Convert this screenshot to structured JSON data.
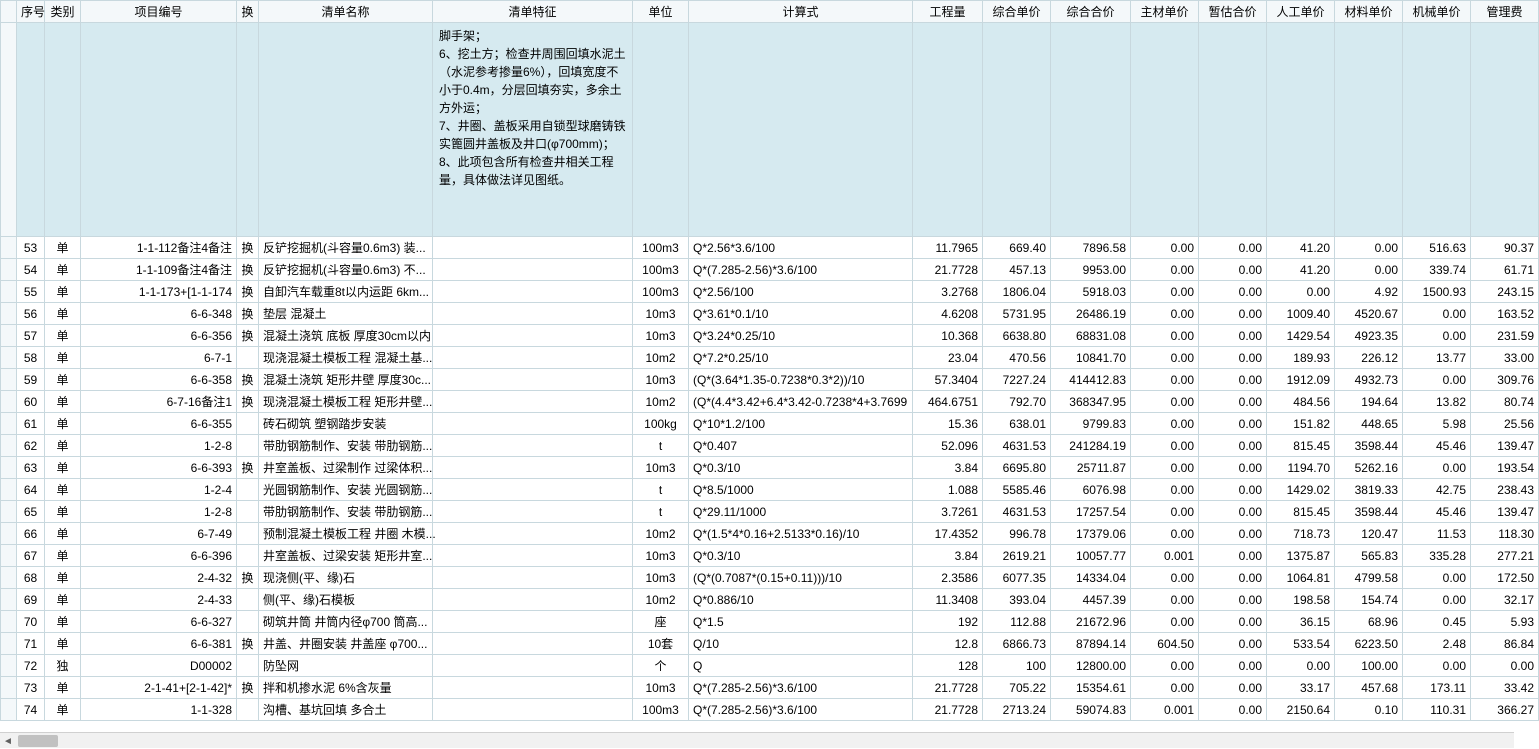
{
  "headers": {
    "seq": "序号",
    "cat": "类别",
    "code": "项目编号",
    "swap": "换",
    "name": "清单名称",
    "feat": "清单特征",
    "unit": "单位",
    "formula": "计算式",
    "qty": "工程量",
    "uprice": "综合单价",
    "tprice": "综合合价",
    "mat": "主材单价",
    "prov": "暂估合价",
    "labor": "人工单价",
    "matu": "材料单价",
    "mach": "机械单价",
    "mgmt": "管理费"
  },
  "special_feat": "脚手架；\n6、挖土方；检查井周围回填水泥土（水泥参考掺量6%），回填宽度不小于0.4m，分层回填夯实，多余土方外运；\n7、井圈、盖板采用自锁型球磨铸铁实篦圆井盖板及井口(φ700mm)；\n8、此项包含所有检查井相关工程量，具体做法详见图纸。",
  "rows": [
    {
      "seq": "53",
      "cat": "单",
      "code": "1-1-112备注4备注",
      "swap": "换",
      "name": "反铲挖掘机(斗容量0.6m3) 装...",
      "feat": "",
      "unit": "100m3",
      "formula": "Q*2.56*3.6/100",
      "qty": "11.7965",
      "uprice": "669.40",
      "tprice": "7896.58",
      "mat": "0.00",
      "prov": "0.00",
      "labor": "41.20",
      "matu": "0.00",
      "mach": "516.63",
      "mgmt": "90.37"
    },
    {
      "seq": "54",
      "cat": "单",
      "code": "1-1-109备注4备注",
      "swap": "换",
      "name": "反铲挖掘机(斗容量0.6m3) 不...",
      "feat": "",
      "unit": "100m3",
      "formula": "Q*(7.285-2.56)*3.6/100",
      "qty": "21.7728",
      "uprice": "457.13",
      "tprice": "9953.00",
      "mat": "0.00",
      "prov": "0.00",
      "labor": "41.20",
      "matu": "0.00",
      "mach": "339.74",
      "mgmt": "61.71"
    },
    {
      "seq": "55",
      "cat": "单",
      "code": "1-1-173+[1-1-174",
      "swap": "换",
      "name": "自卸汽车载重8t以内运距 6km...",
      "feat": "",
      "unit": "100m3",
      "formula": "Q*2.56/100",
      "qty": "3.2768",
      "uprice": "1806.04",
      "tprice": "5918.03",
      "mat": "0.00",
      "prov": "0.00",
      "labor": "0.00",
      "matu": "4.92",
      "mach": "1500.93",
      "mgmt": "243.15"
    },
    {
      "seq": "56",
      "cat": "单",
      "code": "6-6-348",
      "swap": "换",
      "name": "垫层 混凝土",
      "feat": "",
      "unit": "10m3",
      "formula": "Q*3.61*0.1/10",
      "qty": "4.6208",
      "uprice": "5731.95",
      "tprice": "26486.19",
      "mat": "0.00",
      "prov": "0.00",
      "labor": "1009.40",
      "matu": "4520.67",
      "mach": "0.00",
      "mgmt": "163.52"
    },
    {
      "seq": "57",
      "cat": "单",
      "code": "6-6-356",
      "swap": "换",
      "name": "混凝土浇筑 底板 厚度30cm以内",
      "feat": "",
      "unit": "10m3",
      "formula": "Q*3.24*0.25/10",
      "qty": "10.368",
      "uprice": "6638.80",
      "tprice": "68831.08",
      "mat": "0.00",
      "prov": "0.00",
      "labor": "1429.54",
      "matu": "4923.35",
      "mach": "0.00",
      "mgmt": "231.59"
    },
    {
      "seq": "58",
      "cat": "单",
      "code": "6-7-1",
      "swap": "",
      "name": "现浇混凝土模板工程 混凝土基...",
      "feat": "",
      "unit": "10m2",
      "formula": "Q*7.2*0.25/10",
      "qty": "23.04",
      "uprice": "470.56",
      "tprice": "10841.70",
      "mat": "0.00",
      "prov": "0.00",
      "labor": "189.93",
      "matu": "226.12",
      "mach": "13.77",
      "mgmt": "33.00"
    },
    {
      "seq": "59",
      "cat": "单",
      "code": "6-6-358",
      "swap": "换",
      "name": "混凝土浇筑 矩形井壁 厚度30c...",
      "feat": "",
      "unit": "10m3",
      "formula": "(Q*(3.64*1.35-0.7238*0.3*2))/10",
      "qty": "57.3404",
      "uprice": "7227.24",
      "tprice": "414412.83",
      "mat": "0.00",
      "prov": "0.00",
      "labor": "1912.09",
      "matu": "4932.73",
      "mach": "0.00",
      "mgmt": "309.76"
    },
    {
      "seq": "60",
      "cat": "单",
      "code": "6-7-16备注1",
      "swap": "换",
      "name": "现浇混凝土模板工程 矩形井壁...",
      "feat": "",
      "unit": "10m2",
      "formula": "(Q*(4.4*3.42+6.4*3.42-0.7238*4+3.7699",
      "qty": "464.6751",
      "uprice": "792.70",
      "tprice": "368347.95",
      "mat": "0.00",
      "prov": "0.00",
      "labor": "484.56",
      "matu": "194.64",
      "mach": "13.82",
      "mgmt": "80.74"
    },
    {
      "seq": "61",
      "cat": "单",
      "code": "6-6-355",
      "swap": "",
      "name": "砖石砌筑 塑钢踏步安装",
      "feat": "",
      "unit": "100kg",
      "formula": "Q*10*1.2/100",
      "qty": "15.36",
      "uprice": "638.01",
      "tprice": "9799.83",
      "mat": "0.00",
      "prov": "0.00",
      "labor": "151.82",
      "matu": "448.65",
      "mach": "5.98",
      "mgmt": "25.56"
    },
    {
      "seq": "62",
      "cat": "单",
      "code": "1-2-8",
      "swap": "",
      "name": "带肋钢筋制作、安装 带肋钢筋...",
      "feat": "",
      "unit": "t",
      "formula": "Q*0.407",
      "qty": "52.096",
      "uprice": "4631.53",
      "tprice": "241284.19",
      "mat": "0.00",
      "prov": "0.00",
      "labor": "815.45",
      "matu": "3598.44",
      "mach": "45.46",
      "mgmt": "139.47"
    },
    {
      "seq": "63",
      "cat": "单",
      "code": "6-6-393",
      "swap": "换",
      "name": "井室盖板、过梁制作 过梁体积...",
      "feat": "",
      "unit": "10m3",
      "formula": "Q*0.3/10",
      "qty": "3.84",
      "uprice": "6695.80",
      "tprice": "25711.87",
      "mat": "0.00",
      "prov": "0.00",
      "labor": "1194.70",
      "matu": "5262.16",
      "mach": "0.00",
      "mgmt": "193.54"
    },
    {
      "seq": "64",
      "cat": "单",
      "code": "1-2-4",
      "swap": "",
      "name": "光圆钢筋制作、安装 光圆钢筋...",
      "feat": "",
      "unit": "t",
      "formula": "Q*8.5/1000",
      "qty": "1.088",
      "uprice": "5585.46",
      "tprice": "6076.98",
      "mat": "0.00",
      "prov": "0.00",
      "labor": "1429.02",
      "matu": "3819.33",
      "mach": "42.75",
      "mgmt": "238.43"
    },
    {
      "seq": "65",
      "cat": "单",
      "code": "1-2-8",
      "swap": "",
      "name": "带肋钢筋制作、安装 带肋钢筋...",
      "feat": "",
      "unit": "t",
      "formula": "Q*29.11/1000",
      "qty": "3.7261",
      "uprice": "4631.53",
      "tprice": "17257.54",
      "mat": "0.00",
      "prov": "0.00",
      "labor": "815.45",
      "matu": "3598.44",
      "mach": "45.46",
      "mgmt": "139.47"
    },
    {
      "seq": "66",
      "cat": "单",
      "code": "6-7-49",
      "swap": "",
      "name": "预制混凝土模板工程 井圈 木模...",
      "feat": "",
      "unit": "10m2",
      "formula": "Q*(1.5*4*0.16+2.5133*0.16)/10",
      "qty": "17.4352",
      "uprice": "996.78",
      "tprice": "17379.06",
      "mat": "0.00",
      "prov": "0.00",
      "labor": "718.73",
      "matu": "120.47",
      "mach": "11.53",
      "mgmt": "118.30"
    },
    {
      "seq": "67",
      "cat": "单",
      "code": "6-6-396",
      "swap": "",
      "name": "井室盖板、过梁安装 矩形井室...",
      "feat": "",
      "unit": "10m3",
      "formula": "Q*0.3/10",
      "qty": "3.84",
      "uprice": "2619.21",
      "tprice": "10057.77",
      "mat": "0.001",
      "prov": "0.00",
      "labor": "1375.87",
      "matu": "565.83",
      "mach": "335.28",
      "mgmt": "277.21"
    },
    {
      "seq": "68",
      "cat": "单",
      "code": "2-4-32",
      "swap": "换",
      "name": "现浇侧(平、缘)石",
      "feat": "",
      "unit": "10m3",
      "formula": "(Q*(0.7087*(0.15+0.11)))/10",
      "qty": "2.3586",
      "uprice": "6077.35",
      "tprice": "14334.04",
      "mat": "0.00",
      "prov": "0.00",
      "labor": "1064.81",
      "matu": "4799.58",
      "mach": "0.00",
      "mgmt": "172.50"
    },
    {
      "seq": "69",
      "cat": "单",
      "code": "2-4-33",
      "swap": "",
      "name": "侧(平、缘)石模板",
      "feat": "",
      "unit": "10m2",
      "formula": "Q*0.886/10",
      "qty": "11.3408",
      "uprice": "393.04",
      "tprice": "4457.39",
      "mat": "0.00",
      "prov": "0.00",
      "labor": "198.58",
      "matu": "154.74",
      "mach": "0.00",
      "mgmt": "32.17"
    },
    {
      "seq": "70",
      "cat": "单",
      "code": "6-6-327",
      "swap": "",
      "name": "砌筑井筒 井筒内径φ700 筒高...",
      "feat": "",
      "unit": "座",
      "formula": "Q*1.5",
      "qty": "192",
      "uprice": "112.88",
      "tprice": "21672.96",
      "mat": "0.00",
      "prov": "0.00",
      "labor": "36.15",
      "matu": "68.96",
      "mach": "0.45",
      "mgmt": "5.93"
    },
    {
      "seq": "71",
      "cat": "单",
      "code": "6-6-381",
      "swap": "换",
      "name": "井盖、井圈安装 井盖座 φ700...",
      "feat": "",
      "unit": "10套",
      "formula": "Q/10",
      "qty": "12.8",
      "uprice": "6866.73",
      "tprice": "87894.14",
      "mat": "604.50",
      "prov": "0.00",
      "labor": "533.54",
      "matu": "6223.50",
      "mach": "2.48",
      "mgmt": "86.84"
    },
    {
      "seq": "72",
      "cat": "独",
      "code": "D00002",
      "swap": "",
      "name": "防坠网",
      "feat": "",
      "unit": "个",
      "formula": "Q",
      "qty": "128",
      "uprice": "100",
      "tprice": "12800.00",
      "mat": "0.00",
      "prov": "0.00",
      "labor": "0.00",
      "matu": "100.00",
      "mach": "0.00",
      "mgmt": "0.00"
    },
    {
      "seq": "73",
      "cat": "单",
      "code": "2-1-41+[2-1-42]*",
      "swap": "换",
      "name": "拌和机掺水泥 6%含灰量",
      "feat": "",
      "unit": "10m3",
      "formula": "Q*(7.285-2.56)*3.6/100",
      "qty": "21.7728",
      "uprice": "705.22",
      "tprice": "15354.61",
      "mat": "0.00",
      "prov": "0.00",
      "labor": "33.17",
      "matu": "457.68",
      "mach": "173.11",
      "mgmt": "33.42"
    },
    {
      "seq": "74",
      "cat": "单",
      "code": "1-1-328",
      "swap": "",
      "name": "沟槽、基坑回填 多合土",
      "feat": "",
      "unit": "100m3",
      "formula": "Q*(7.285-2.56)*3.6/100",
      "qty": "21.7728",
      "uprice": "2713.24",
      "tprice": "59074.83",
      "mat": "0.001",
      "prov": "0.00",
      "labor": "2150.64",
      "matu": "0.10",
      "mach": "110.31",
      "mgmt": "366.27"
    }
  ]
}
